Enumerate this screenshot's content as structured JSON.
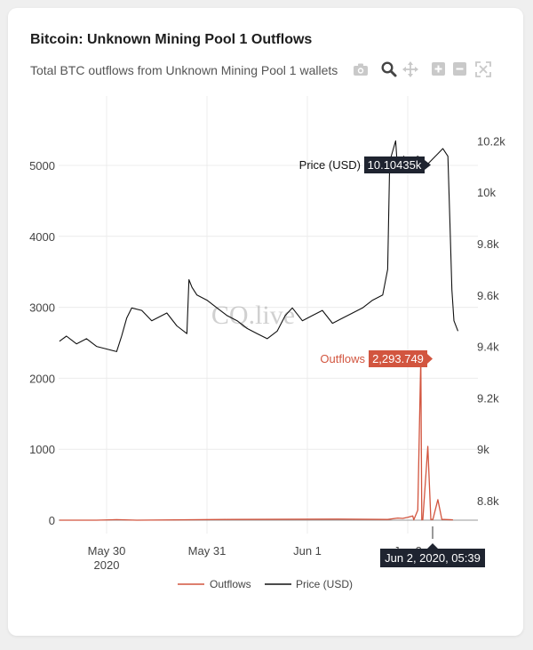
{
  "header": {
    "title": "Bitcoin: Unknown Mining Pool 1 Outflows",
    "subtitle": "Total BTC outflows from Unknown Mining Pool 1 wallets"
  },
  "toolbar": {
    "icons": [
      "camera-icon",
      "zoom-icon",
      "pan-icon",
      "zoom-in-icon",
      "zoom-out-icon",
      "autoscale-icon"
    ]
  },
  "watermark": "CQ.live",
  "tooltips": {
    "price": {
      "label": "Price (USD)",
      "value": "10.10435k"
    },
    "outflows": {
      "label": "Outflows",
      "value": "2,293.749"
    },
    "xhover": "Jun 2, 2020, 05:39"
  },
  "colors": {
    "outflows": "#d2553f",
    "price": "#111111",
    "tooltip_dark": "#1f2430"
  },
  "chart_data": {
    "type": "line",
    "title": "Bitcoin: Unknown Mining Pool 1 Outflows",
    "subtitle": "Total BTC outflows from Unknown Mining Pool 1 wallets",
    "x_ticks": [
      {
        "label": "May 30",
        "sub": "2020",
        "t": 1.0
      },
      {
        "label": "May 31",
        "sub": "",
        "t": 2.0
      },
      {
        "label": "Jun 1",
        "sub": "",
        "t": 3.0
      },
      {
        "label": "Jun 2",
        "sub": "",
        "t": 4.0
      }
    ],
    "x_range": [
      0.53,
      4.5
    ],
    "y_left": {
      "ticks": [
        0,
        1000,
        2000,
        3000,
        4000,
        5000
      ],
      "range": [
        -100,
        5700
      ]
    },
    "y_right": {
      "ticks": [
        8.8,
        9.0,
        9.2,
        9.4,
        9.6,
        9.8,
        10.0,
        10.2
      ],
      "tick_labels": [
        "8.8k",
        "9k",
        "9.2k",
        "9.4k",
        "9.6k",
        "9.8k",
        "10k",
        "10.2k"
      ],
      "range": [
        8.72,
        10.24
      ]
    },
    "grid": true,
    "legend_position": "bottom-center",
    "series": [
      {
        "name": "Outflows",
        "axis": "left",
        "color": "#d2553f",
        "x": [
          0.53,
          0.9,
          1.1,
          1.3,
          2.2,
          3.3,
          3.8,
          3.9,
          3.95,
          4.0,
          4.05,
          4.06,
          4.1,
          4.13,
          4.14,
          4.15,
          4.2,
          4.23,
          4.24,
          4.25,
          4.3,
          4.34,
          4.35,
          4.36,
          4.45
        ],
        "y": [
          0,
          0,
          8,
          0,
          10,
          15,
          10,
          30,
          25,
          40,
          60,
          5,
          140,
          2294,
          5,
          10,
          1040,
          10,
          10,
          10,
          290,
          10,
          10,
          10,
          5
        ]
      },
      {
        "name": "Price (USD)",
        "axis": "right",
        "color": "#111111",
        "x": [
          0.53,
          0.6,
          0.7,
          0.8,
          0.9,
          1.0,
          1.1,
          1.15,
          1.2,
          1.25,
          1.35,
          1.45,
          1.6,
          1.7,
          1.8,
          1.82,
          1.85,
          1.9,
          2.0,
          2.1,
          2.2,
          2.3,
          2.4,
          2.5,
          2.6,
          2.7,
          2.78,
          2.85,
          2.95,
          3.05,
          3.15,
          3.25,
          3.35,
          3.45,
          3.55,
          3.65,
          3.75,
          3.8,
          3.82,
          3.88,
          3.9,
          3.92,
          3.96,
          3.98,
          4.05,
          4.1,
          4.2,
          4.3,
          4.35,
          4.4,
          4.42,
          4.44,
          4.46,
          4.5
        ],
        "y": [
          9.42,
          9.44,
          9.41,
          9.43,
          9.4,
          9.39,
          9.38,
          9.44,
          9.51,
          9.55,
          9.54,
          9.5,
          9.53,
          9.48,
          9.45,
          9.66,
          9.63,
          9.6,
          9.58,
          9.55,
          9.52,
          9.5,
          9.47,
          9.45,
          9.43,
          9.46,
          9.52,
          9.55,
          9.5,
          9.52,
          9.54,
          9.49,
          9.51,
          9.53,
          9.55,
          9.58,
          9.6,
          9.7,
          10.12,
          10.2,
          10.08,
          10.1,
          10.14,
          10.12,
          10.13,
          10.14,
          10.11,
          10.15,
          10.17,
          10.14,
          9.88,
          9.62,
          9.5,
          9.46
        ]
      }
    ]
  }
}
